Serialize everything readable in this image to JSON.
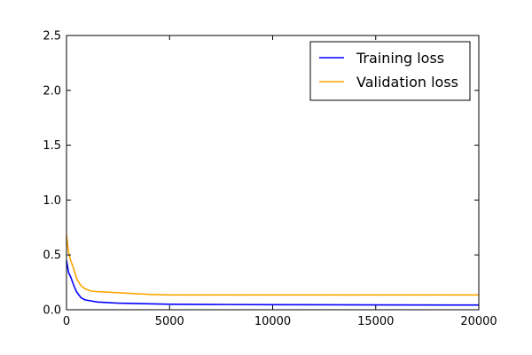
{
  "chart_data": {
    "type": "line",
    "title": "",
    "xlabel": "",
    "ylabel": "",
    "xlim": [
      0,
      20000
    ],
    "ylim": [
      0,
      2.5
    ],
    "x_ticks": [
      0,
      5000,
      10000,
      15000,
      20000
    ],
    "x_tick_labels": [
      "0",
      "5000",
      "10000",
      "15000",
      "20000"
    ],
    "y_ticks": [
      0,
      0.5,
      1,
      1.5,
      2,
      2.5
    ],
    "y_tick_labels": [
      "0.0",
      "0.5",
      "1.0",
      "1.5",
      "2.0",
      "2.5"
    ],
    "grid": false,
    "legend_position": "top-right",
    "series": [
      {
        "name": "Training loss",
        "color": "#0000ff",
        "x": [
          0,
          100,
          200,
          300,
          400,
          500,
          700,
          900,
          1200,
          1500,
          2000,
          2500,
          3000,
          4000,
          5000,
          7000,
          10000,
          15000,
          20000
        ],
        "y": [
          0.45,
          0.34,
          0.3,
          0.25,
          0.2,
          0.16,
          0.11,
          0.09,
          0.08,
          0.07,
          0.065,
          0.06,
          0.058,
          0.054,
          0.05,
          0.048,
          0.046,
          0.044,
          0.043
        ]
      },
      {
        "name": "Validation loss",
        "color": "#ffa500",
        "x": [
          0,
          100,
          200,
          300,
          400,
          500,
          700,
          900,
          1200,
          1500,
          2000,
          2500,
          3000,
          4000,
          5000,
          7000,
          10000,
          15000,
          20000
        ],
        "y": [
          0.68,
          0.52,
          0.45,
          0.4,
          0.34,
          0.28,
          0.22,
          0.19,
          0.17,
          0.165,
          0.16,
          0.155,
          0.15,
          0.14,
          0.135,
          0.135,
          0.135,
          0.135,
          0.135
        ]
      }
    ]
  }
}
